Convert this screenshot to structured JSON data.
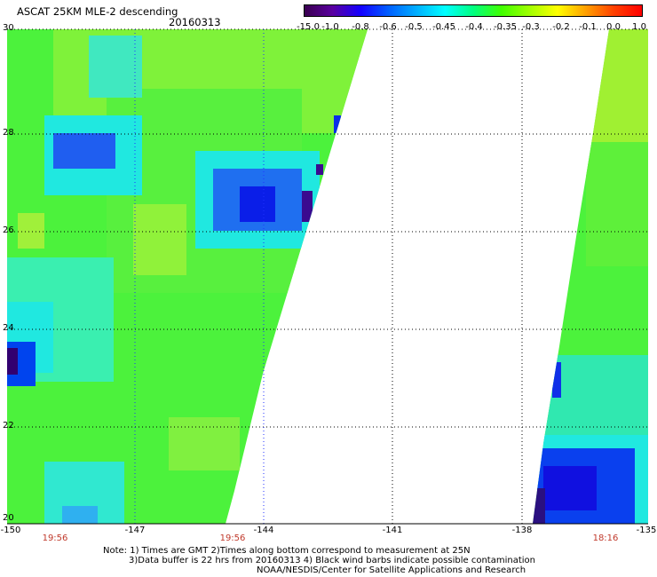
{
  "header": {
    "title": "ASCAT 25KM MLE-2 descending",
    "date": "20160313"
  },
  "colorbar": {
    "ticks": [
      "-15.0",
      "-1.0",
      "-0.8",
      "-0.6",
      "-0.5",
      "-0.45",
      "-0.4",
      "-0.35",
      "-0.3",
      "-0.2",
      "-0.1",
      "0.0",
      "1.0"
    ],
    "colors": [
      "#3a0050",
      "#5a00a0",
      "#1400ff",
      "#0060ff",
      "#00b0ff",
      "#00ffff",
      "#00ff80",
      "#40ff00",
      "#a0ff00",
      "#ffff00",
      "#ffa000",
      "#ff4000",
      "#ff0000"
    ]
  },
  "axes": {
    "lat_labels": [
      "30",
      "28",
      "26",
      "24",
      "22",
      "20"
    ],
    "lon_labels": [
      "-150",
      "-147",
      "-144",
      "-141",
      "-138",
      "-135"
    ],
    "time_labels": [
      "19:56",
      "19:56",
      "18:16"
    ]
  },
  "note": {
    "line1": "Note: 1) Times are GMT 2)Times along bottom correspond to measurement at 25N",
    "line2": "3)Data buffer is 22 hrs from 20160313 4) Black wind barbs indicate possible contamination",
    "line3": "NOAA/NESDIS/Center for Satellite Applications and Research"
  }
}
